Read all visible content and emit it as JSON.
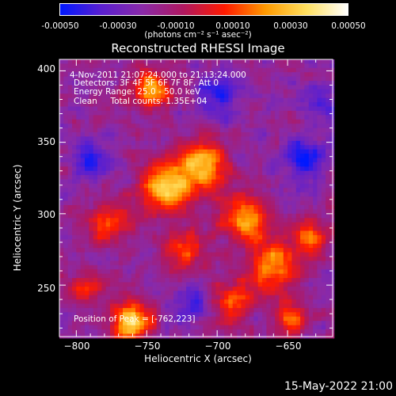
{
  "colorbar": {
    "ticks": [
      "-0.00050",
      "-0.00030",
      "-0.00010",
      "0.00010",
      "0.00030",
      "0.00050"
    ],
    "unit": "(photons cm⁻² s⁻¹ asec⁻²)",
    "colors": [
      "#0018ff",
      "#5a1fd0",
      "#8a2aa8",
      "#b01860",
      "#ff1a00",
      "#ff9a00",
      "#ffe060",
      "#ffffff"
    ]
  },
  "chart_data": {
    "type": "heatmap",
    "title": "Reconstructed RHESSI Image",
    "xlabel": "Heliocentric X (arcsec)",
    "ylabel": "Heliocentric Y (arcsec)",
    "xlim": [
      -812,
      -618
    ],
    "ylim": [
      214,
      408
    ],
    "x_ticks": [
      -800,
      -750,
      -700,
      -650
    ],
    "y_ticks": [
      250,
      300,
      350,
      400
    ],
    "x_tick_labels": [
      "−800",
      "−750",
      "−700",
      "−650"
    ],
    "y_tick_labels": [
      "250",
      "300",
      "350",
      "400"
    ],
    "value_range": [
      -0.0005,
      0.0005
    ],
    "peak_position": [
      -762,
      223
    ],
    "sources": [
      {
        "x": -763,
        "y": 226,
        "amp": 1.0,
        "w": 9
      },
      {
        "x": -738,
        "y": 320,
        "amp": 0.9,
        "w": 12
      },
      {
        "x": -712,
        "y": 335,
        "amp": 0.85,
        "w": 12
      },
      {
        "x": -748,
        "y": 388,
        "amp": 0.8,
        "w": 9
      },
      {
        "x": -680,
        "y": 298,
        "amp": 0.7,
        "w": 11
      },
      {
        "x": -660,
        "y": 265,
        "amp": 0.75,
        "w": 12
      },
      {
        "x": -635,
        "y": 285,
        "amp": 0.6,
        "w": 8
      },
      {
        "x": -780,
        "y": 295,
        "amp": 0.55,
        "w": 10
      },
      {
        "x": -690,
        "y": 240,
        "amp": 0.6,
        "w": 10
      },
      {
        "x": -725,
        "y": 275,
        "amp": 0.5,
        "w": 10
      },
      {
        "x": -650,
        "y": 228,
        "amp": 0.55,
        "w": 9
      },
      {
        "x": -795,
        "y": 250,
        "amp": 0.35,
        "w": 9
      },
      {
        "x": -640,
        "y": 340,
        "amp": -0.6,
        "w": 10
      },
      {
        "x": -790,
        "y": 340,
        "amp": -0.5,
        "w": 9
      },
      {
        "x": -720,
        "y": 240,
        "amp": -0.4,
        "w": 9
      },
      {
        "x": -700,
        "y": 385,
        "amp": -0.45,
        "w": 11
      },
      {
        "x": -630,
        "y": 380,
        "amp": -0.3,
        "w": 10
      }
    ]
  },
  "annotation": {
    "time_range": "4-Nov-2011 21:07:24.000 to 21:13:24.000",
    "detectors": "Detectors: 3F 4F 5F 6F 7F 8F, Att 0",
    "energy": "Energy Range: 25.0 - 50.0 keV",
    "clean": "Clean     Total counts: 1.35E+04",
    "peak": "Position of Peak = [-762,223]"
  },
  "footer": "15-May-2022 21:00"
}
